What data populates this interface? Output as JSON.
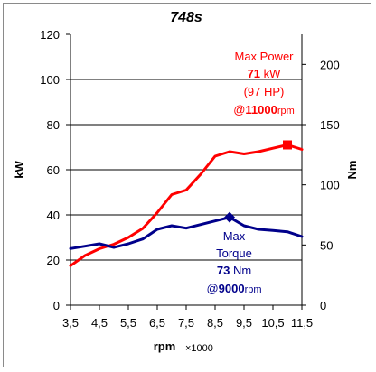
{
  "chart_data": {
    "type": "line",
    "title": "748s",
    "xlabel": "rpm",
    "xlabel_multiplier": "×1000",
    "ylabel_left": "kW",
    "ylabel_right": "Nm",
    "xlim": [
      3.5,
      11.5
    ],
    "ylim_left": [
      0,
      120
    ],
    "ylim_right": [
      0,
      225
    ],
    "x_ticks": [
      "3,5",
      "4,5",
      "5,5",
      "6,5",
      "7,5",
      "8,5",
      "9,5",
      "10,5",
      "11,5"
    ],
    "y_ticks_left": [
      "0",
      "20",
      "40",
      "60",
      "80",
      "100",
      "120"
    ],
    "y_ticks_right": [
      "0",
      "50",
      "100",
      "150",
      "200"
    ],
    "grid": "horizontal",
    "series": [
      {
        "name": "",
        "axis": "left",
        "unit": "kW",
        "color": "#ff0000",
        "x": [
          3.5,
          4.0,
          4.5,
          5.0,
          5.5,
          6.0,
          6.5,
          7.0,
          7.5,
          8.0,
          8.5,
          9.0,
          9.5,
          10.0,
          10.5,
          11.0,
          11.5
        ],
        "values": [
          17.5,
          22,
          25,
          27,
          30,
          34,
          41,
          49,
          51,
          58,
          66,
          68,
          67,
          68,
          69.5,
          71,
          69
        ]
      },
      {
        "name": "",
        "axis": "right",
        "unit": "Nm",
        "color": "#00008b",
        "x": [
          3.5,
          4.0,
          4.5,
          5.0,
          5.5,
          6.0,
          6.5,
          7.0,
          7.5,
          8.0,
          8.5,
          9.0,
          9.5,
          10.0,
          10.5,
          11.0,
          11.5
        ],
        "values": [
          47,
          49,
          51,
          48,
          51,
          55,
          63,
          66,
          64,
          67,
          70,
          73,
          66,
          63,
          62,
          61,
          57
        ]
      }
    ],
    "annotations": {
      "power": {
        "line1": "Max Power",
        "value": "71",
        "unit": "kW",
        "hp": "(97 HP)",
        "at": "@",
        "rpm": "11000",
        "rpm_unit": "rpm",
        "marker_x": 11.0,
        "marker_y": 71,
        "color": "#ff0000"
      },
      "torque": {
        "line1": "Max",
        "line2": "Torque",
        "value": "73",
        "unit": "Nm",
        "at": "@",
        "rpm": "9000",
        "rpm_unit": "rpm",
        "marker_x": 9.0,
        "marker_y": 73,
        "color": "#00008b"
      }
    }
  }
}
